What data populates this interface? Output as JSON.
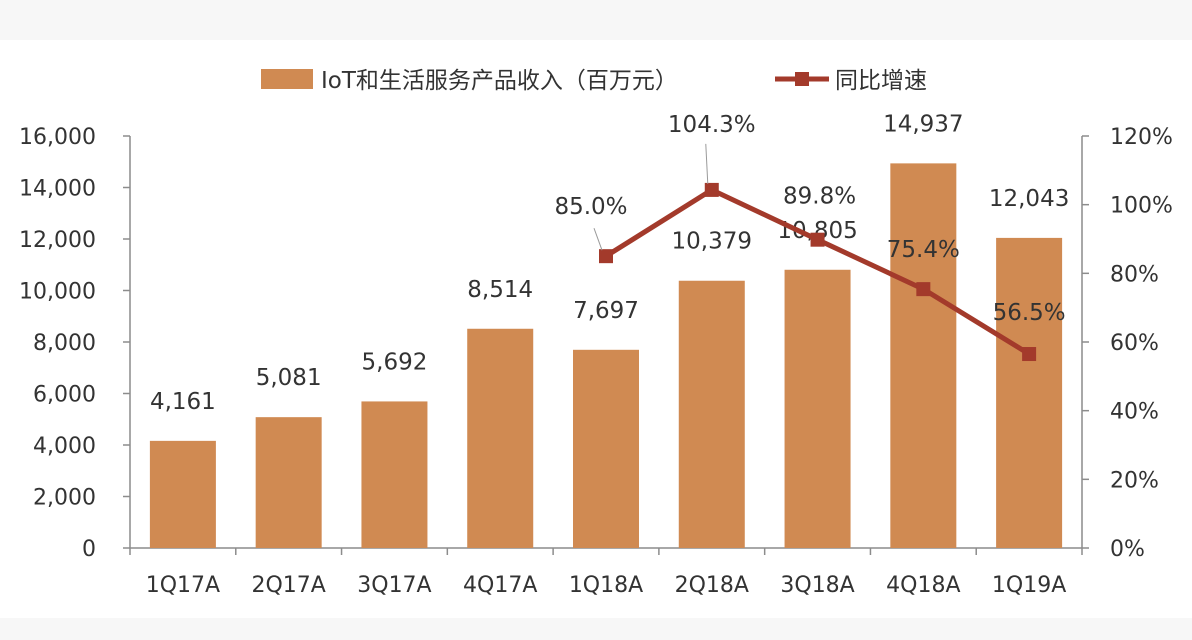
{
  "chart_data": {
    "type": "bar",
    "categories": [
      "1Q17A",
      "2Q17A",
      "3Q17A",
      "4Q17A",
      "1Q18A",
      "2Q18A",
      "3Q18A",
      "4Q18A",
      "1Q19A"
    ],
    "series": [
      {
        "name": "IoT和生活服务产品收入（百万元）",
        "type": "bar",
        "axis": "left",
        "color": "#D08A52",
        "values": [
          4161,
          5081,
          5692,
          8514,
          7697,
          10379,
          10805,
          14937,
          12043
        ],
        "labels": [
          "4,161",
          "5,081",
          "5,692",
          "8,514",
          "7,697",
          "10,379",
          "10,805",
          "14,937",
          "12,043"
        ]
      },
      {
        "name": "同比增速",
        "type": "line",
        "axis": "right",
        "color": "#A33A2B",
        "values": [
          null,
          null,
          null,
          null,
          85.0,
          104.3,
          89.8,
          75.4,
          56.5
        ],
        "labels": [
          "",
          "",
          "",
          "",
          "85.0%",
          "104.3%",
          "89.8%",
          "75.4%",
          "56.5%"
        ]
      }
    ],
    "y_left": {
      "range": [
        0,
        16000
      ],
      "ticks": [
        0,
        2000,
        4000,
        6000,
        8000,
        10000,
        12000,
        14000,
        16000
      ],
      "tick_labels": [
        "0",
        "2,000",
        "4,000",
        "6,000",
        "8,000",
        "10,000",
        "12,000",
        "14,000",
        "16,000"
      ]
    },
    "y_right": {
      "range": [
        0,
        120
      ],
      "ticks": [
        0,
        20,
        40,
        60,
        80,
        100,
        120
      ],
      "tick_labels": [
        "0%",
        "20%",
        "40%",
        "60%",
        "80%",
        "100%",
        "120%"
      ]
    },
    "legend_position": "top-center",
    "grid": false
  }
}
